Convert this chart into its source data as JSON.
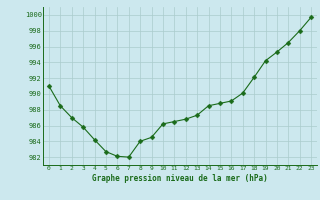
{
  "x": [
    0,
    1,
    2,
    3,
    4,
    5,
    6,
    7,
    8,
    9,
    10,
    11,
    12,
    13,
    14,
    15,
    16,
    17,
    18,
    19,
    20,
    21,
    22,
    23
  ],
  "y": [
    991.0,
    988.5,
    987.0,
    985.8,
    984.2,
    982.7,
    982.1,
    982.0,
    984.0,
    984.5,
    986.2,
    986.5,
    986.8,
    987.3,
    988.5,
    988.8,
    989.1,
    990.1,
    992.1,
    994.2,
    995.3,
    996.5,
    998.0,
    999.7
  ],
  "line_color": "#1a6b1a",
  "marker": "D",
  "marker_size": 2.5,
  "bg_color": "#cce8ee",
  "grid_color": "#aacccc",
  "xlabel": "Graphe pression niveau de la mer (hPa)",
  "xlabel_color": "#1a6b1a",
  "tick_color": "#1a6b1a",
  "ylim": [
    981,
    1001
  ],
  "xlim": [
    -0.5,
    23.5
  ],
  "yticks": [
    982,
    984,
    986,
    988,
    990,
    992,
    994,
    996,
    998,
    1000
  ],
  "xticks": [
    0,
    1,
    2,
    3,
    4,
    5,
    6,
    7,
    8,
    9,
    10,
    11,
    12,
    13,
    14,
    15,
    16,
    17,
    18,
    19,
    20,
    21,
    22,
    23
  ]
}
